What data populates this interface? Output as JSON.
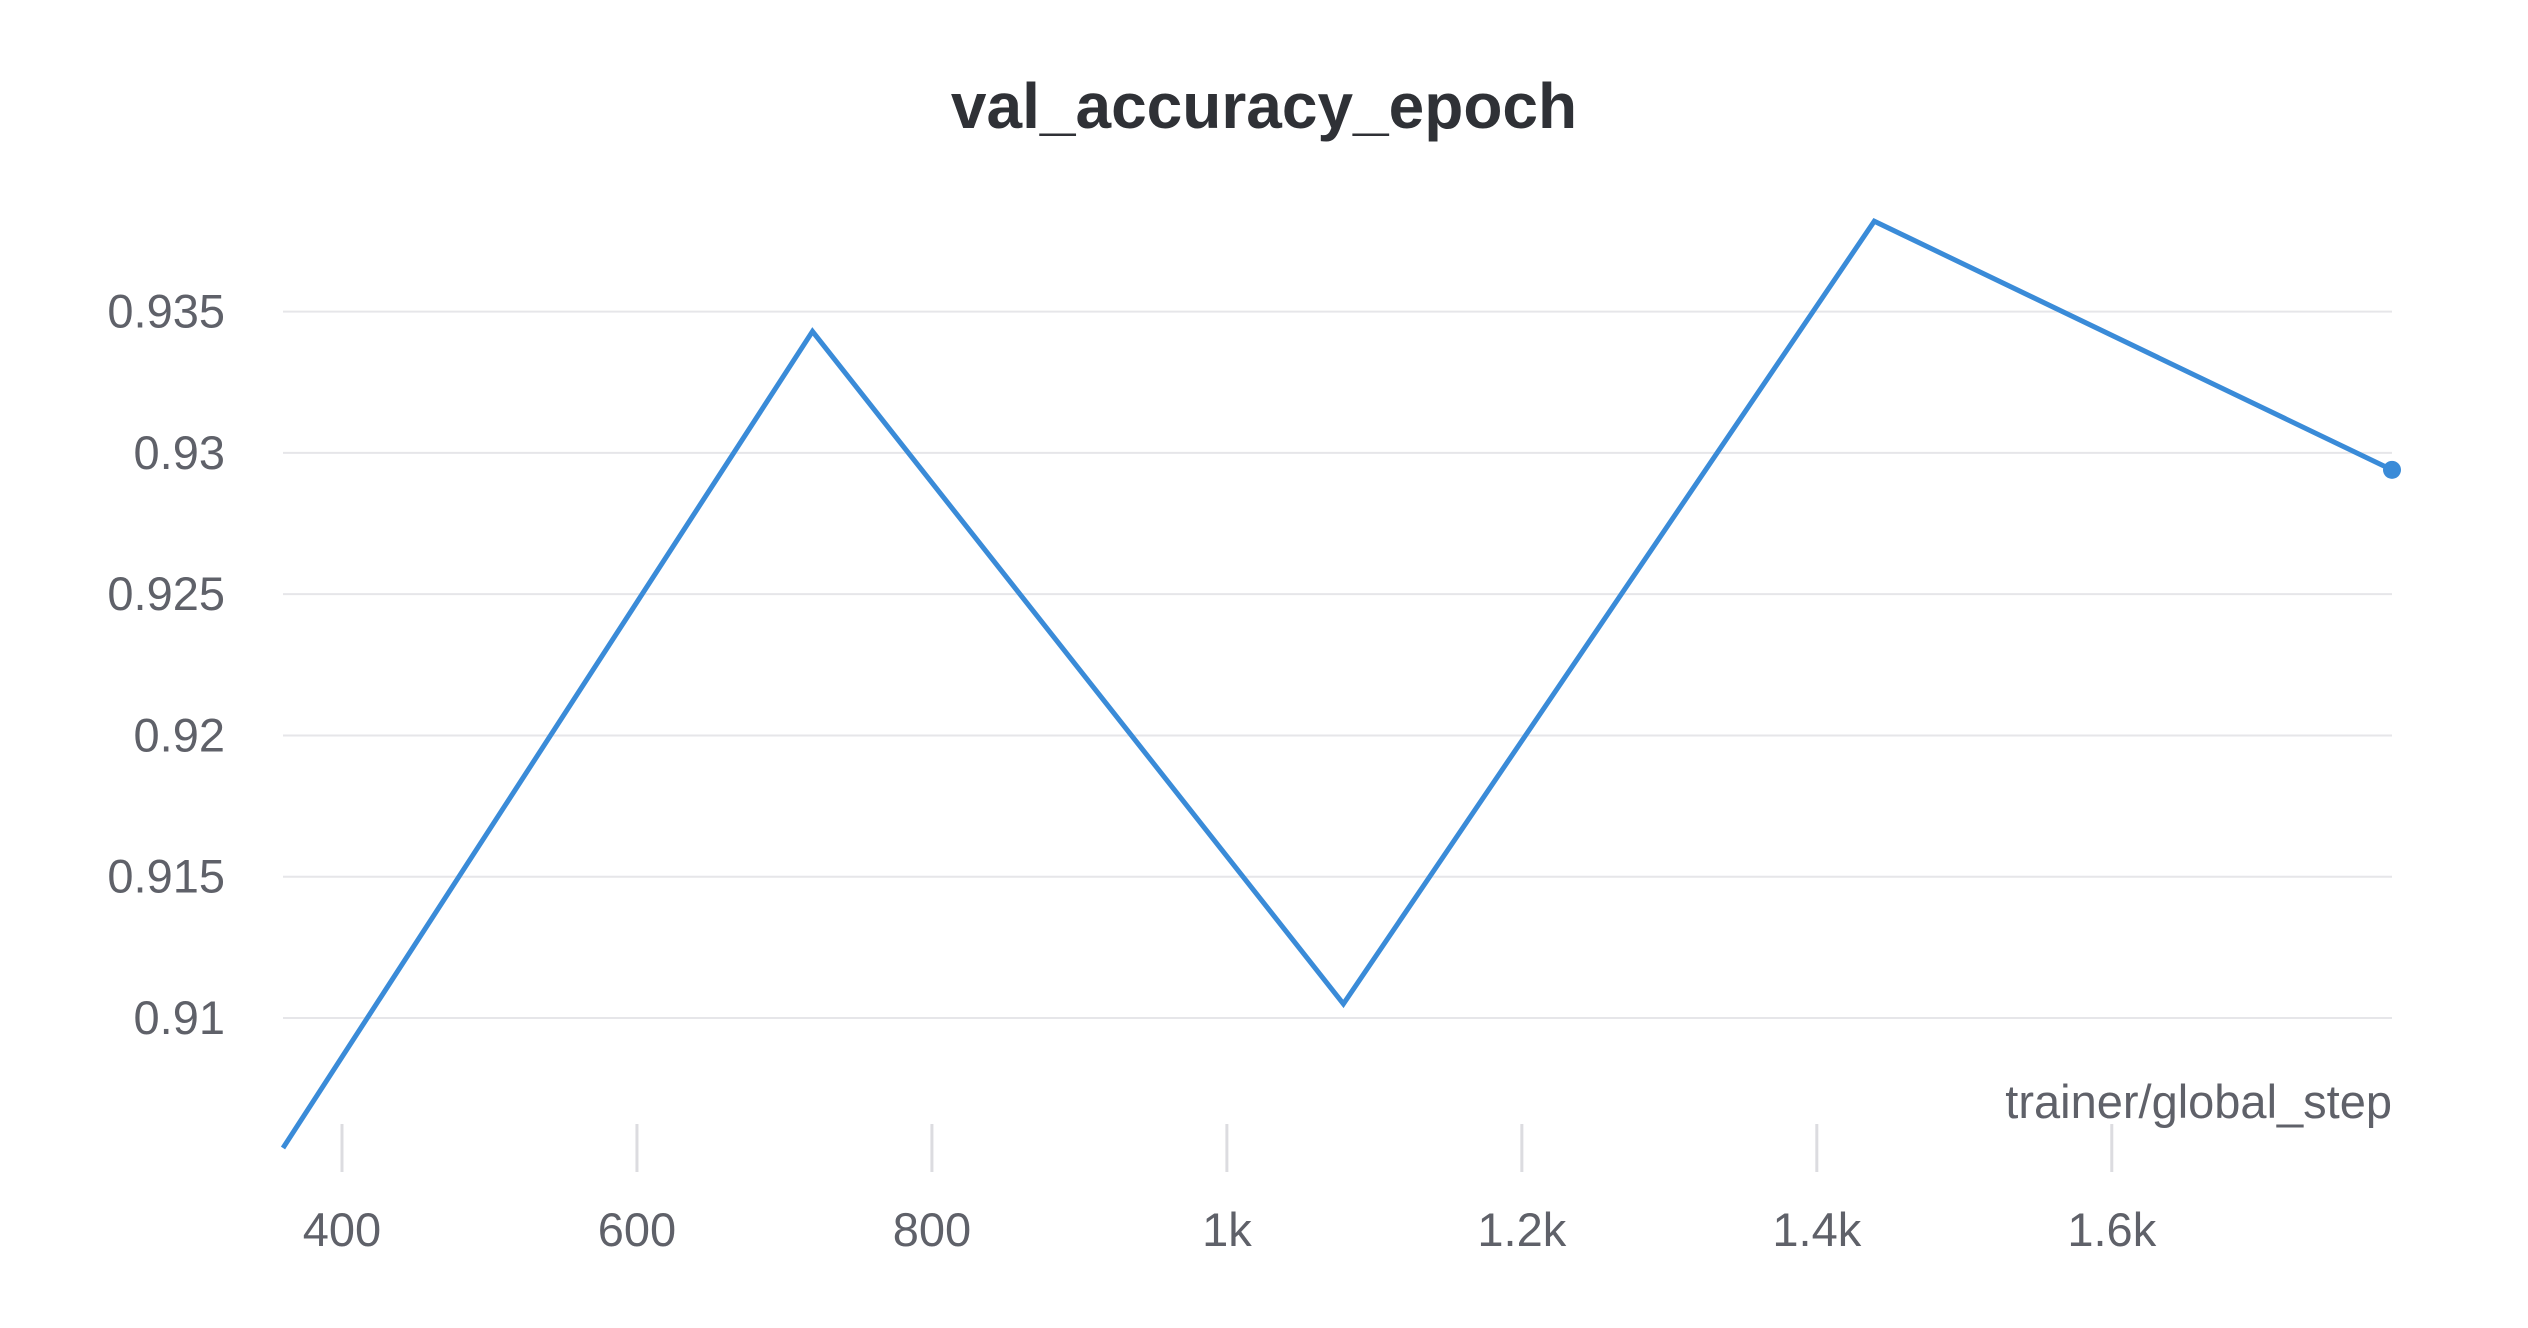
{
  "chart_data": {
    "type": "line",
    "title": "val_accuracy_epoch",
    "xlabel": "trainer/global_step",
    "ylabel": "",
    "xlim": [
      360,
      1790
    ],
    "ylim": [
      0.9054,
      0.9398
    ],
    "x_ticks": [
      {
        "value": 400,
        "label": "400"
      },
      {
        "value": 600,
        "label": "600"
      },
      {
        "value": 800,
        "label": "800"
      },
      {
        "value": 1000,
        "label": "1k"
      },
      {
        "value": 1200,
        "label": "1.2k"
      },
      {
        "value": 1400,
        "label": "1.4k"
      },
      {
        "value": 1600,
        "label": "1.6k"
      }
    ],
    "y_ticks": [
      {
        "value": 0.91,
        "label": "0.91"
      },
      {
        "value": 0.915,
        "label": "0.915"
      },
      {
        "value": 0.92,
        "label": "0.92"
      },
      {
        "value": 0.925,
        "label": "0.925"
      },
      {
        "value": 0.93,
        "label": "0.93"
      },
      {
        "value": 0.935,
        "label": "0.935"
      }
    ],
    "grid": true,
    "legend": "none",
    "series": [
      {
        "color": "#3a8bd8",
        "x": [
          360,
          719,
          1079,
          1439,
          1790
        ],
        "y": [
          0.9054,
          0.9343,
          0.9105,
          0.9382,
          0.9294
        ],
        "end_marker": true
      }
    ]
  }
}
